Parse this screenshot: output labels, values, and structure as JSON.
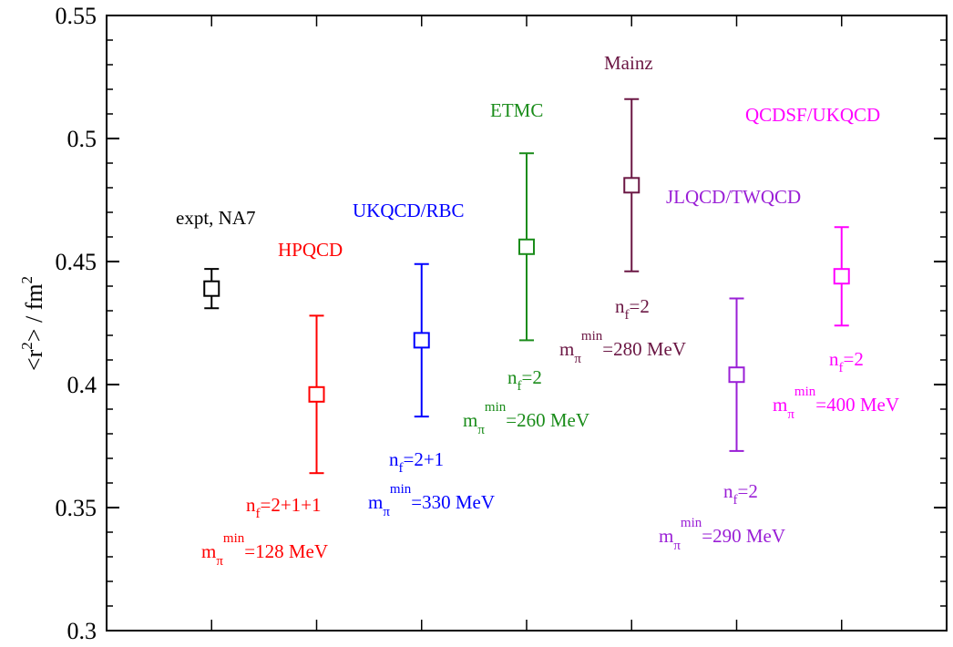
{
  "chart_data": {
    "type": "scatter",
    "title": "",
    "ylabel": {
      "a": "<r",
      "b": "2",
      "c": "> / fm",
      "d": "2"
    },
    "ylim": [
      0.3,
      0.55
    ],
    "yticks": [
      {
        "v": 0.3,
        "label": "0.3"
      },
      {
        "v": 0.35,
        "label": "0.35"
      },
      {
        "v": 0.4,
        "label": "0.4"
      },
      {
        "v": 0.45,
        "label": "0.45"
      },
      {
        "v": 0.5,
        "label": "0.5"
      },
      {
        "v": 0.55,
        "label": "0.55"
      }
    ],
    "yminor_step": 0.01,
    "xticks": [
      1,
      2,
      3,
      4,
      5,
      6,
      7
    ],
    "xlim": [
      0,
      8
    ],
    "points": [
      {
        "key": "expt",
        "x": 1,
        "y": 0.439,
        "ylow": 0.431,
        "yhigh": 0.447,
        "color": "#000000",
        "name": "expt, NA7"
      },
      {
        "key": "hpqcd",
        "x": 2,
        "y": 0.396,
        "ylow": 0.364,
        "yhigh": 0.428,
        "color": "#ff0000",
        "name": "HPQCD",
        "nf": {
          "pre": "n",
          "sub": "f",
          "post": "=2+1+1"
        },
        "mpi": {
          "pre": "m",
          "sub": "π",
          "sup": "min",
          "post": "=128 MeV"
        }
      },
      {
        "key": "ukqcd_rbc",
        "x": 3,
        "y": 0.418,
        "ylow": 0.387,
        "yhigh": 0.449,
        "color": "#0000ff",
        "name": "UKQCD/RBC",
        "nf": {
          "pre": "n",
          "sub": "f",
          "post": "=2+1"
        },
        "mpi": {
          "pre": "m",
          "sub": "π",
          "sup": "min",
          "post": "=330 MeV"
        }
      },
      {
        "key": "etmc",
        "x": 4,
        "y": 0.456,
        "ylow": 0.418,
        "yhigh": 0.494,
        "color": "#1a8c1a",
        "name": "ETMC",
        "nf": {
          "pre": "n",
          "sub": "f",
          "post": "=2"
        },
        "mpi": {
          "pre": "m",
          "sub": "π",
          "sup": "min",
          "post": "=260 MeV"
        }
      },
      {
        "key": "mainz",
        "x": 5,
        "y": 0.481,
        "ylow": 0.446,
        "yhigh": 0.516,
        "color": "#6b1744",
        "name": "Mainz",
        "nf": {
          "pre": "n",
          "sub": "f",
          "post": "=2"
        },
        "mpi": {
          "pre": "m",
          "sub": "π",
          "sup": "min",
          "post": "=280 MeV"
        }
      },
      {
        "key": "jlqcd",
        "x": 6,
        "y": 0.404,
        "ylow": 0.373,
        "yhigh": 0.435,
        "color": "#9a1fd6",
        "name": "JLQCD/TWQCD",
        "nf": {
          "pre": "n",
          "sub": "f",
          "post": "=2"
        },
        "mpi": {
          "pre": "m",
          "sub": "π",
          "sup": "min",
          "post": "=290 MeV"
        }
      },
      {
        "key": "qcdsf",
        "x": 7,
        "y": 0.444,
        "ylow": 0.424,
        "yhigh": 0.464,
        "color": "#ff00ff",
        "name": "QCDSF/UKQCD",
        "nf": {
          "pre": "n",
          "sub": "f",
          "post": "=2"
        },
        "mpi": {
          "pre": "m",
          "sub": "π",
          "sup": "min",
          "post": "=400 MeV"
        }
      }
    ],
    "grid": false,
    "legend": "none"
  }
}
